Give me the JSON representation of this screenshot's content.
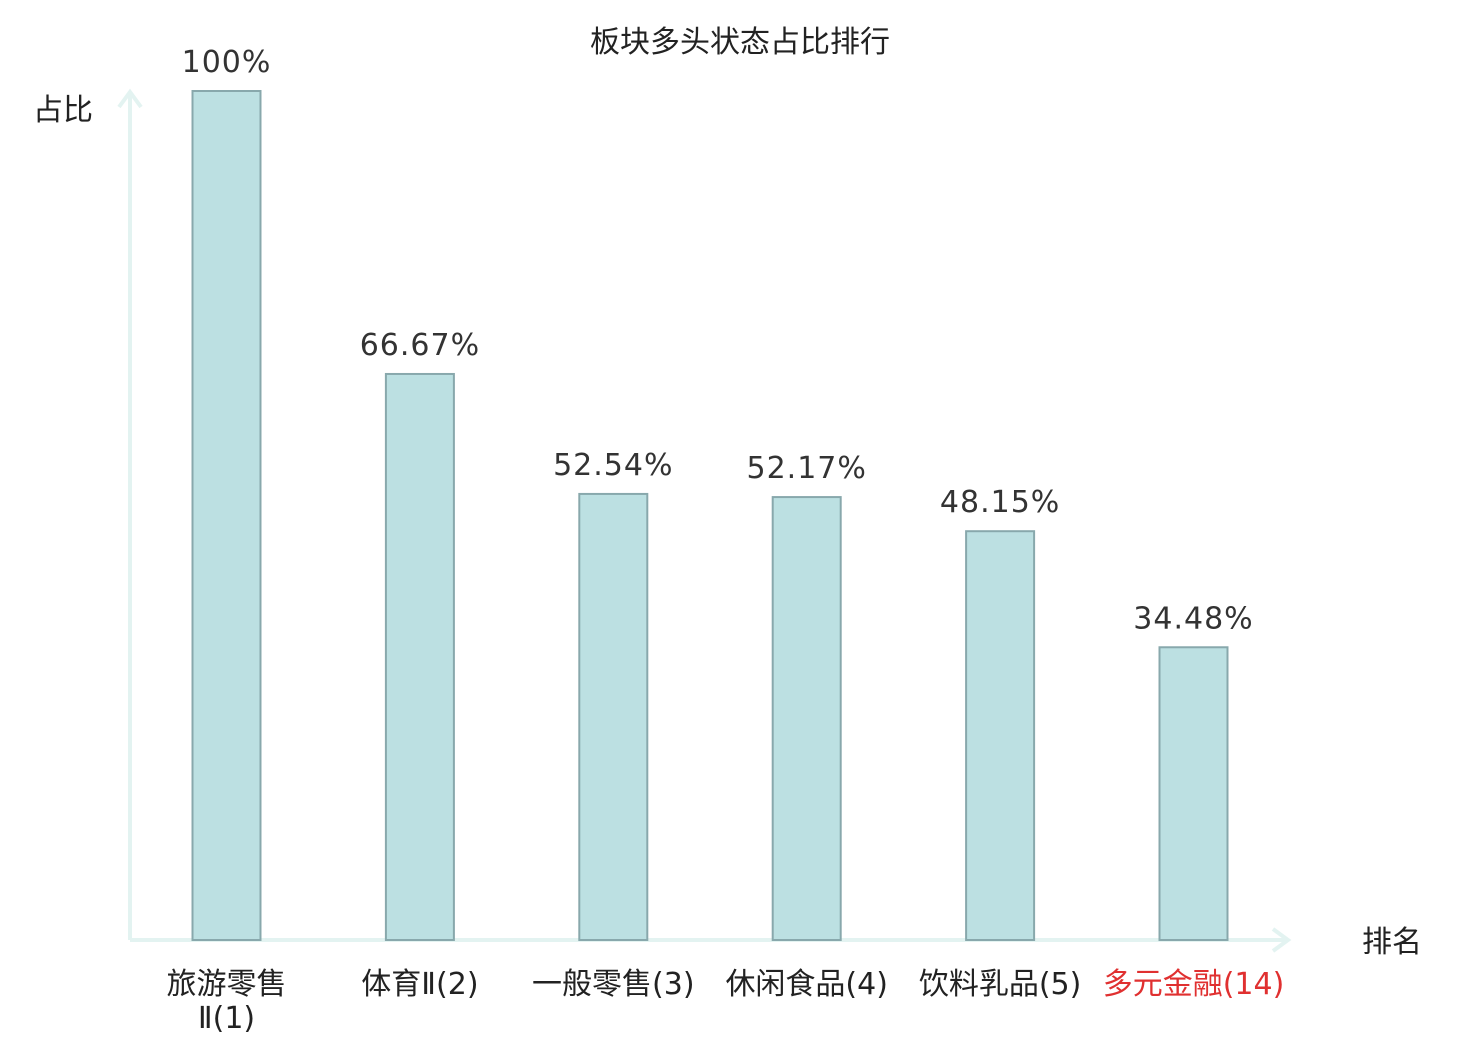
{
  "chart_data": {
    "type": "bar",
    "title": "板块多头状态占比排行",
    "xlabel": "排名",
    "ylabel": "占比",
    "ylim": [
      0,
      100
    ],
    "grid": false,
    "categories": [
      {
        "name": "旅游零售Ⅱ",
        "rank": "(1)",
        "highlight": false,
        "wrap": true
      },
      {
        "name": "体育Ⅱ",
        "rank": "(2)",
        "highlight": false,
        "wrap": false
      },
      {
        "name": "一般零售",
        "rank": "(3)",
        "highlight": false,
        "wrap": false
      },
      {
        "name": "休闲食品",
        "rank": "(4)",
        "highlight": false,
        "wrap": false
      },
      {
        "name": "饮料乳品",
        "rank": "(5)",
        "highlight": false,
        "wrap": false
      },
      {
        "name": "多元金融",
        "rank": "(14)",
        "highlight": true,
        "wrap": false
      }
    ],
    "values": [
      100,
      66.67,
      52.54,
      52.17,
      48.15,
      34.48
    ],
    "value_labels": [
      "100%",
      "66.67%",
      "52.54%",
      "52.17%",
      "48.15%",
      "34.48%"
    ]
  },
  "colors": {
    "bar_fill": "#bce0e2",
    "bar_stroke": "#88a8ac",
    "axis": "#e3f3f1",
    "text": "#222222",
    "highlight": "#e03030"
  }
}
